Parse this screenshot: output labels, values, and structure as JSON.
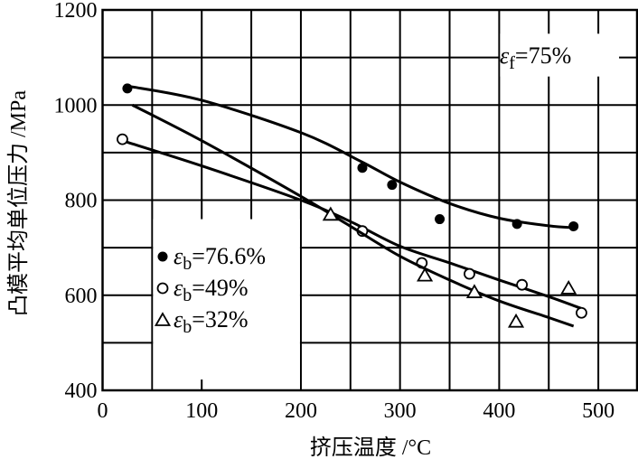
{
  "chart_data": {
    "type": "line",
    "title": "",
    "xlabel": "挤压温度 /°C",
    "ylabel": "凸模平均单位压力 /MPa",
    "xlim": [
      0,
      540
    ],
    "ylim": [
      400,
      1200
    ],
    "xticks": [
      0,
      100,
      200,
      300,
      400,
      500
    ],
    "yticks": [
      400,
      600,
      800,
      1000,
      1200
    ],
    "grid": true,
    "annotation": {
      "symbol": "ε",
      "sub": "f",
      "text": "=75%"
    },
    "legend_position": "lower-left",
    "series": [
      {
        "name": "εb=76.6%",
        "symbol": "ε",
        "sub": "b",
        "label": "=76.6%",
        "marker": "filled-circle",
        "points": [
          [
            25,
            1035
          ],
          [
            262,
            868
          ],
          [
            292,
            832
          ],
          [
            340,
            760
          ],
          [
            418,
            750
          ],
          [
            475,
            745
          ]
        ],
        "curve": [
          [
            25,
            1040
          ],
          [
            100,
            1010
          ],
          [
            200,
            942
          ],
          [
            260,
            882
          ],
          [
            300,
            838
          ],
          [
            350,
            793
          ],
          [
            400,
            762
          ],
          [
            450,
            746
          ],
          [
            475,
            742
          ]
        ]
      },
      {
        "name": "εb=49%",
        "symbol": "ε",
        "sub": "b",
        "label": "=49%",
        "marker": "open-circle",
        "points": [
          [
            20,
            928
          ],
          [
            262,
            735
          ],
          [
            322,
            668
          ],
          [
            370,
            645
          ],
          [
            423,
            622
          ],
          [
            483,
            563
          ]
        ],
        "curve": [
          [
            20,
            925
          ],
          [
            100,
            872
          ],
          [
            200,
            800
          ],
          [
            250,
            755
          ],
          [
            300,
            703
          ],
          [
            350,
            668
          ],
          [
            400,
            632
          ],
          [
            450,
            597
          ],
          [
            483,
            572
          ]
        ]
      },
      {
        "name": "εb=32%",
        "symbol": "ε",
        "sub": "b",
        "label": "=32%",
        "marker": "open-triangle",
        "points": [
          [
            230,
            770
          ],
          [
            325,
            642
          ],
          [
            375,
            607
          ],
          [
            417,
            545
          ],
          [
            470,
            615
          ]
        ],
        "curve": [
          [
            30,
            1000
          ],
          [
            100,
            925
          ],
          [
            200,
            808
          ],
          [
            250,
            745
          ],
          [
            300,
            682
          ],
          [
            350,
            632
          ],
          [
            400,
            588
          ],
          [
            450,
            553
          ],
          [
            475,
            535
          ]
        ]
      }
    ]
  }
}
